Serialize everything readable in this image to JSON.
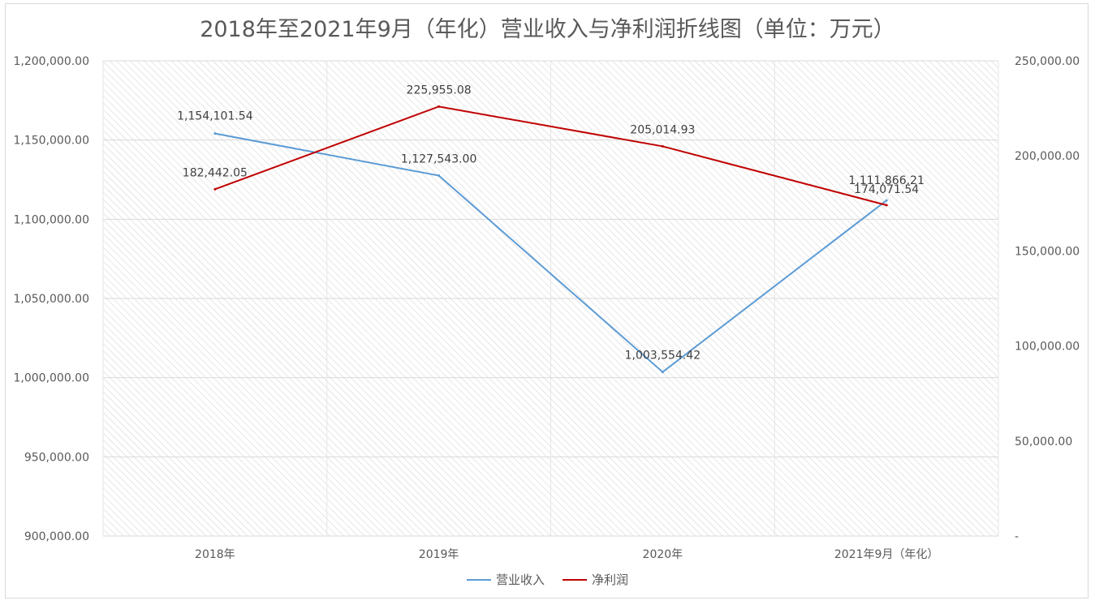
{
  "title": "2018年至2021年9月（年化）营业收入与净利润折线图（单位：万元）",
  "colors": {
    "revenue": "#5b9bd5",
    "profit": "#c00000",
    "grid": "#d9d9d9",
    "text": "#595959"
  },
  "chart_data": {
    "type": "line",
    "title": "2018年至2021年9月（年化）营业收入与净利润折线图（单位：万元）",
    "categories": [
      "2018年",
      "2019年",
      "2020年",
      "2021年9月（年化）"
    ],
    "series": [
      {
        "name": "营业收入",
        "axis": "left",
        "color": "#5b9bd5",
        "values": [
          1154101.54,
          1127543.0,
          1003554.42,
          1111866.21
        ],
        "labels": [
          "1,154,101.54",
          "1,127,543.00",
          "1,003,554.42",
          "1,111,866.21"
        ]
      },
      {
        "name": "净利润",
        "axis": "right",
        "color": "#c00000",
        "values": [
          182442.05,
          225955.08,
          205014.93,
          174071.54
        ],
        "labels": [
          "182,442.05",
          "225,955.08",
          "205,014.93",
          "174,071.54"
        ]
      }
    ],
    "y_left": {
      "range": [
        900000,
        1200000
      ],
      "ticks": [
        900000,
        950000,
        1000000,
        1050000,
        1100000,
        1150000,
        1200000
      ],
      "tick_labels": [
        "900,000.00",
        "950,000.00",
        "1,000,000.00",
        "1,050,000.00",
        "1,100,000.00",
        "1,150,000.00",
        "1,200,000.00"
      ]
    },
    "y_right": {
      "range": [
        0,
        250000
      ],
      "ticks": [
        0,
        50000,
        100000,
        150000,
        200000,
        250000
      ],
      "tick_labels": [
        "-",
        "50,000.00",
        "100,000.00",
        "150,000.00",
        "200,000.00",
        "250,000.00"
      ]
    },
    "grid": true,
    "legend": "bottom"
  }
}
